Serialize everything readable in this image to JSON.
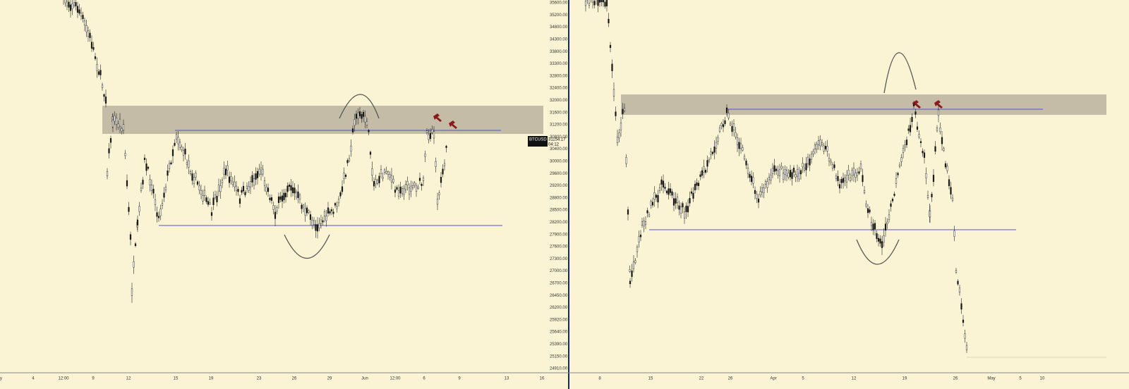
{
  "price_axis": [
    "35600.00",
    "35200.00",
    "34800.00",
    "34300.00",
    "33800.00",
    "33300.00",
    "32800.00",
    "32400.00",
    "32000.00",
    "31600.00",
    "31200.00",
    "30800.00",
    "30400.00",
    "30000.00",
    "29600.00",
    "29200.00",
    "28800.00",
    "28500.00",
    "28200.00",
    "27900.00",
    "27600.00",
    "27300.00",
    "27000.00",
    "26700.00",
    "26450.00",
    "26200.00",
    "25920.00",
    "25640.00",
    "25390.00",
    "25150.00",
    "24910.00"
  ],
  "badge": {
    "symbol": "BTCUSD",
    "price": "31154.17",
    "countdown": "04:12"
  },
  "left_time_axis": [
    "y",
    "4",
    "12:00",
    "9",
    "12",
    "15",
    "19",
    "23",
    "26",
    "29",
    "Jun",
    "12:00",
    "6",
    "9",
    "13",
    "16"
  ],
  "right_time_axis": [
    "8",
    "15",
    "22",
    "26",
    "Apr",
    "5",
    "12",
    "19",
    "26",
    "May",
    "5",
    "10"
  ]
}
